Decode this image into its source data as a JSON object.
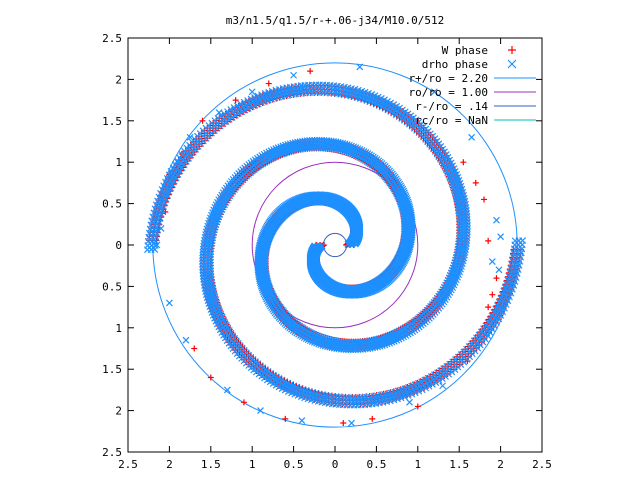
{
  "chart_data": {
    "type": "scatter",
    "title": "m3/n1.5/q1.5/r-+.06-j34/M10.0/512",
    "xlim": [
      -2.5,
      2.5
    ],
    "ylim": [
      -2.5,
      2.5
    ],
    "xticks": [
      -2.5,
      -2,
      -1.5,
      -1,
      -0.5,
      0,
      0.5,
      1,
      1.5,
      2,
      2.5
    ],
    "yticks": [
      -2.5,
      -2,
      -1.5,
      -1,
      -0.5,
      0,
      0.5,
      1,
      1.5,
      2,
      2.5
    ],
    "xtick_labels": [
      "2.5",
      "2",
      "1.5",
      "1",
      "0.5",
      "0",
      "0.5",
      "1",
      "1.5",
      "2",
      "2.5"
    ],
    "ytick_labels": [
      "2.5",
      "2",
      "1.5",
      "1",
      "0.5",
      "0",
      "0.5",
      "1",
      "1.5",
      "2",
      "2.5"
    ],
    "grid": false,
    "legend_position": "top-right",
    "series": [
      {
        "name": "W phase",
        "marker": "plus",
        "color": "#ff0000",
        "spirals": [
          {
            "theta0": 0.0,
            "theta1": 9.4,
            "r0": 0.18,
            "k": 0.215,
            "arm": 0
          },
          {
            "theta0": 0.0,
            "theta1": 9.4,
            "r0": 0.18,
            "k": 0.215,
            "arm": 3.1416
          }
        ],
        "outer_points": [
          [
            1.85,
            0.05
          ],
          [
            1.95,
            -0.4
          ],
          [
            1.9,
            -0.6
          ],
          [
            1.85,
            -0.75
          ],
          [
            0.1,
            -2.15
          ],
          [
            0.45,
            -2.1
          ],
          [
            1.0,
            -1.95
          ],
          [
            1.6,
            -1.4
          ],
          [
            -0.6,
            -2.1
          ],
          [
            -1.1,
            -1.9
          ],
          [
            -1.5,
            -1.6
          ],
          [
            -1.7,
            -1.25
          ],
          [
            -2.05,
            0.4
          ],
          [
            -2.1,
            0.6
          ],
          [
            -2.0,
            0.85
          ],
          [
            -1.85,
            1.1
          ],
          [
            -1.6,
            1.5
          ],
          [
            -1.2,
            1.75
          ],
          [
            -0.8,
            1.95
          ],
          [
            -0.3,
            2.1
          ],
          [
            1.8,
            0.55
          ],
          [
            1.7,
            0.75
          ],
          [
            1.55,
            1.0
          ]
        ]
      },
      {
        "name": "drho phase",
        "marker": "cross",
        "color": "#1e90ff",
        "spirals": [
          {
            "theta0": 0.0,
            "theta1": 9.4,
            "r0": 0.2,
            "k": 0.215,
            "arm": 0.05
          },
          {
            "theta0": 0.0,
            "theta1": 9.4,
            "r0": 0.2,
            "k": 0.215,
            "arm": 3.19
          }
        ],
        "outer_points": [
          [
            1.9,
            -0.2
          ],
          [
            1.98,
            -0.3
          ],
          [
            2.0,
            0.1
          ],
          [
            1.95,
            0.3
          ],
          [
            0.9,
            -1.9
          ],
          [
            1.3,
            -1.7
          ],
          [
            0.2,
            -2.15
          ],
          [
            -0.4,
            -2.12
          ],
          [
            -0.9,
            -2.0
          ],
          [
            -1.3,
            -1.75
          ],
          [
            -1.8,
            -1.15
          ],
          [
            -2.0,
            -0.7
          ],
          [
            -2.15,
            0.0
          ],
          [
            -2.1,
            0.2
          ],
          [
            -1.9,
            1.0
          ],
          [
            -1.75,
            1.3
          ],
          [
            -1.4,
            1.6
          ],
          [
            -1.0,
            1.85
          ],
          [
            -0.5,
            2.05
          ],
          [
            0.3,
            2.15
          ],
          [
            1.2,
            1.85
          ],
          [
            1.65,
            1.3
          ]
        ]
      },
      {
        "name": "r+/ro = 2.20",
        "kind": "circle",
        "radius": 2.2,
        "color": "#1e90ff"
      },
      {
        "name": "ro/ro = 1.00",
        "kind": "circle",
        "radius": 1.0,
        "color": "#9b30c0"
      },
      {
        "name": "r-/ro = .14",
        "kind": "circle",
        "radius": 0.14,
        "color": "#3060c0"
      },
      {
        "name": "rc/ro = NaN",
        "kind": "circle",
        "radius": null,
        "color": "#00c0c0"
      }
    ]
  }
}
